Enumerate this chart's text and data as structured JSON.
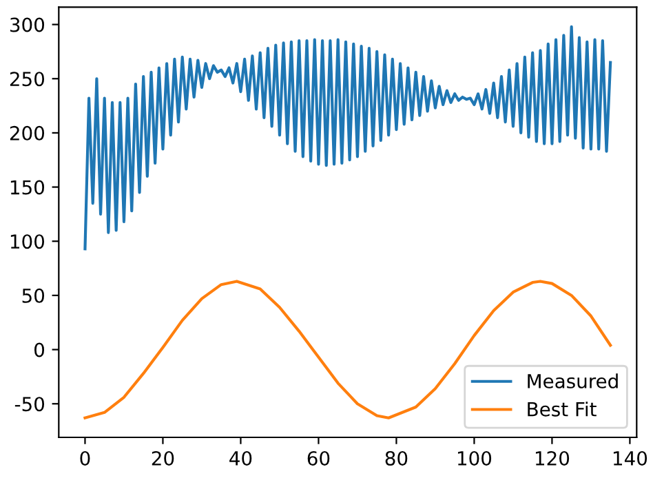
{
  "chart_data": {
    "type": "line",
    "xlim": [
      -6.75,
      141.75
    ],
    "ylim": [
      -81,
      316
    ],
    "xticks": [
      0,
      20,
      40,
      60,
      80,
      100,
      120,
      140
    ],
    "yticks": [
      -50,
      0,
      50,
      100,
      150,
      200,
      250,
      300
    ],
    "legend": "lower right",
    "grid": false,
    "series": [
      {
        "name": "Measured",
        "color": "#1f77b4",
        "x": [
          0,
          1,
          2,
          3,
          4,
          5,
          6,
          7,
          8,
          9,
          10,
          11,
          12,
          13,
          14,
          15,
          16,
          17,
          18,
          19,
          20,
          21,
          22,
          23,
          24,
          25,
          26,
          27,
          28,
          29,
          30,
          31,
          32,
          33,
          34,
          35,
          36,
          37,
          38,
          39,
          40,
          41,
          42,
          43,
          44,
          45,
          46,
          47,
          48,
          49,
          50,
          51,
          52,
          53,
          54,
          55,
          56,
          57,
          58,
          59,
          60,
          61,
          62,
          63,
          64,
          65,
          66,
          67,
          68,
          69,
          70,
          71,
          72,
          73,
          74,
          75,
          76,
          77,
          78,
          79,
          80,
          81,
          82,
          83,
          84,
          85,
          86,
          87,
          88,
          89,
          90,
          91,
          92,
          93,
          94,
          95,
          96,
          97,
          98,
          99,
          100,
          101,
          102,
          103,
          104,
          105,
          106,
          107,
          108,
          109,
          110,
          111,
          112,
          113,
          114,
          115,
          116,
          117,
          118,
          119,
          120,
          121,
          122,
          123,
          124,
          125,
          126,
          127,
          128,
          129,
          130,
          131,
          132,
          133,
          134,
          135
        ],
        "values": [
          93,
          232,
          135,
          250,
          125,
          232,
          108,
          228,
          110,
          228,
          118,
          232,
          128,
          245,
          145,
          252,
          160,
          256,
          172,
          260,
          185,
          264,
          198,
          268,
          210,
          270,
          222,
          268,
          233,
          267,
          242,
          264,
          250,
          262,
          256,
          258,
          252,
          260,
          246,
          264,
          238,
          268,
          230,
          271,
          222,
          274,
          214,
          278,
          206,
          281,
          198,
          283,
          190,
          284,
          183,
          285,
          178,
          285,
          174,
          286,
          171,
          285,
          170,
          285,
          171,
          286,
          172,
          284,
          175,
          282,
          178,
          280,
          183,
          278,
          188,
          275,
          193,
          272,
          198,
          268,
          203,
          264,
          208,
          260,
          212,
          256,
          216,
          252,
          220,
          248,
          223,
          243,
          226,
          239,
          228,
          236,
          230,
          233,
          231,
          232,
          226,
          236,
          222,
          240,
          218,
          246,
          214,
          252,
          210,
          258,
          206,
          264,
          200,
          270,
          196,
          274,
          192,
          276,
          190,
          282,
          190,
          286,
          192,
          290,
          198,
          298,
          195,
          288,
          186,
          284,
          185,
          286,
          185,
          285,
          183,
          265
        ]
      },
      {
        "name": "Best Fit",
        "color": "#ff7f0e",
        "x": [
          0,
          5,
          10,
          15,
          20,
          25,
          30,
          35,
          39,
          45,
          50,
          55,
          60,
          65,
          70,
          75,
          78,
          85,
          90,
          95,
          100,
          105,
          110,
          115,
          117,
          120,
          125,
          130,
          135
        ],
        "values": [
          -63,
          -58,
          -44,
          -22,
          2,
          27,
          47,
          60,
          63,
          56,
          39,
          17,
          -7,
          -31,
          -50,
          -61,
          -63,
          -53,
          -36,
          -13,
          13,
          36,
          53,
          62,
          63,
          61,
          50,
          31,
          4
        ]
      }
    ]
  }
}
